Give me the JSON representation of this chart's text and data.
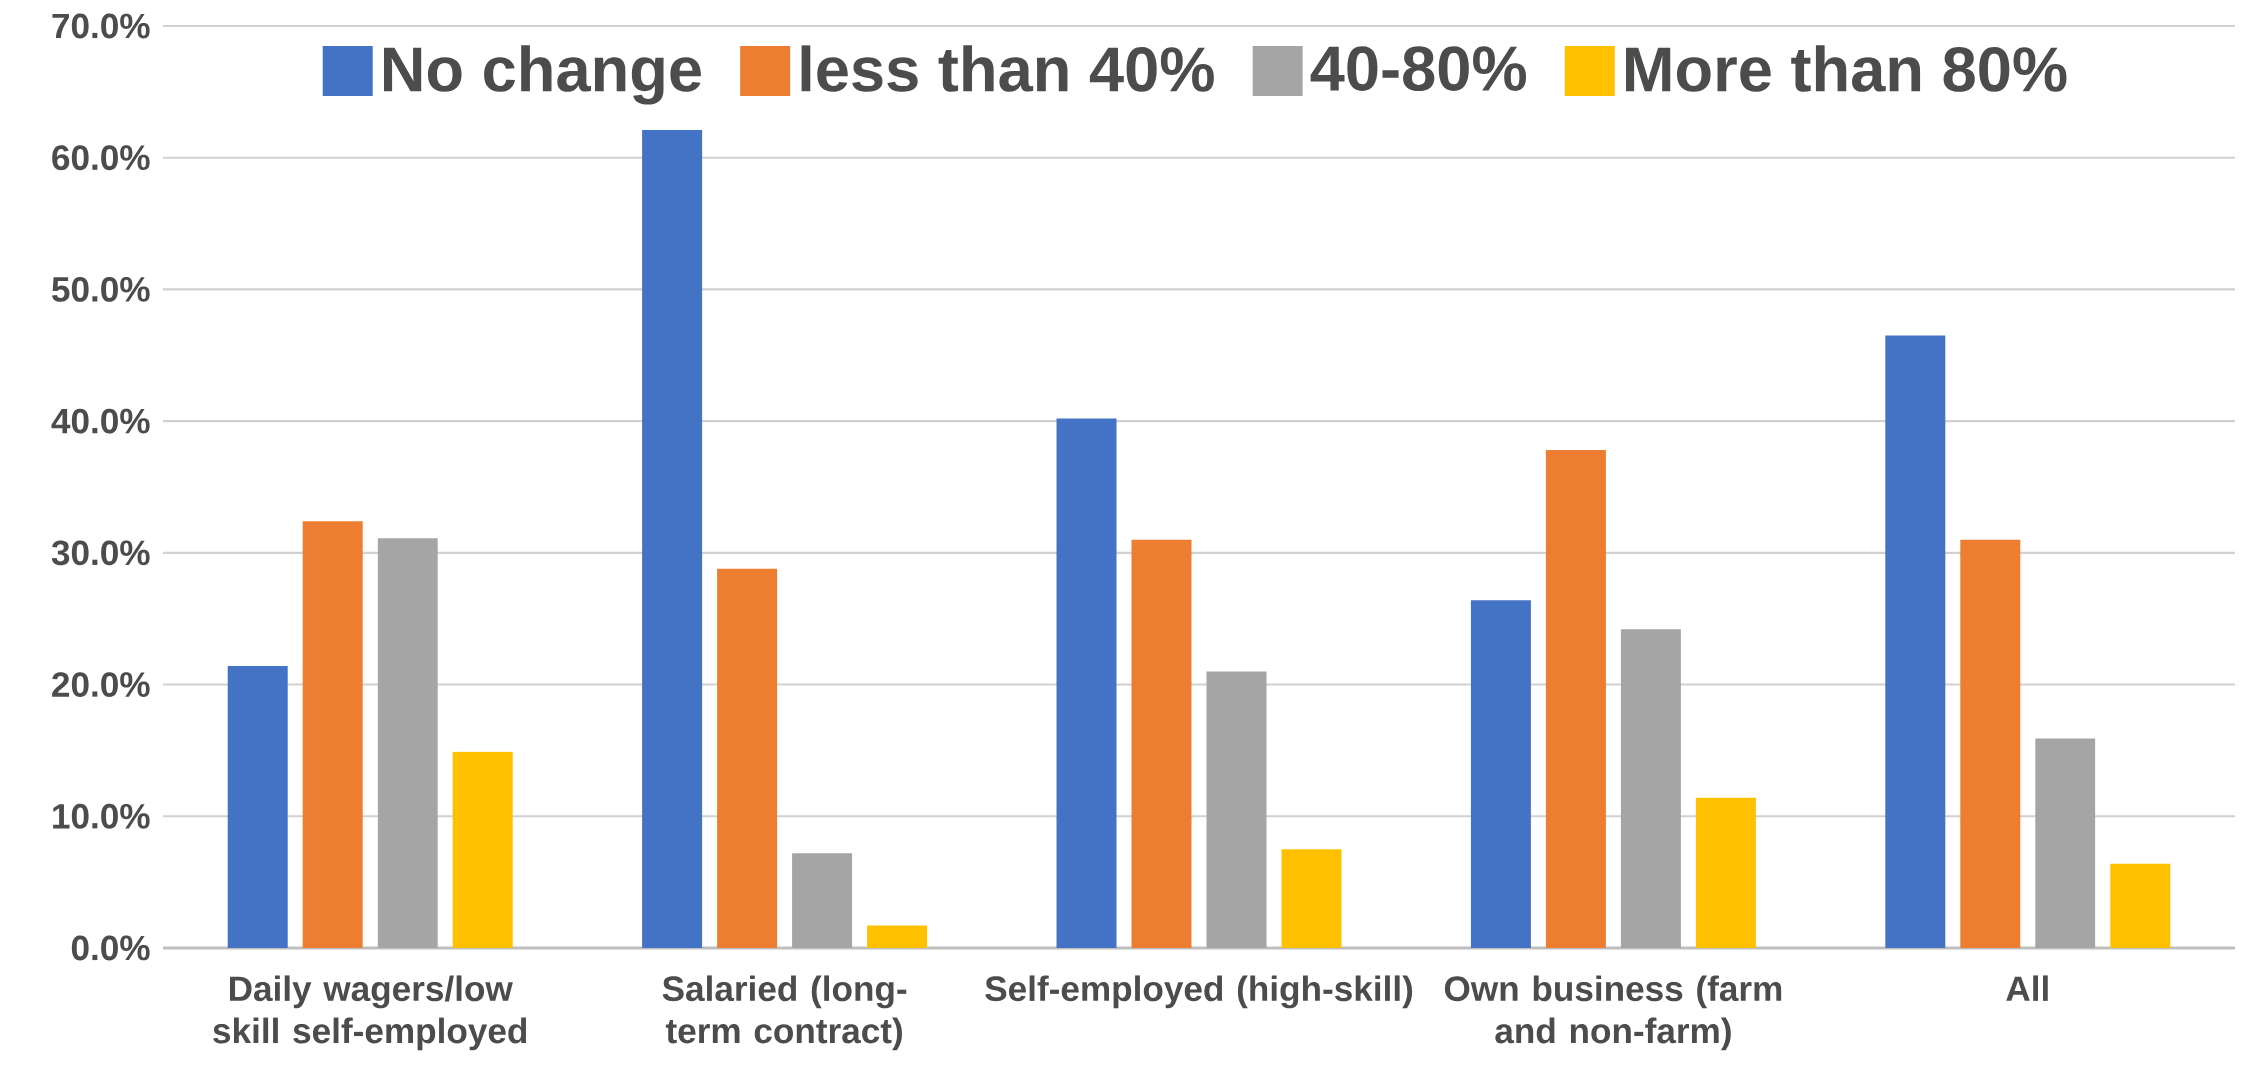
{
  "chart_data": {
    "type": "bar",
    "categories": [
      "Daily wagers/low skill self-employed",
      "Salaried (long-term contract)",
      "Self-employed (high-skill)",
      "Own business (farm and non-farm)",
      "All"
    ],
    "series": [
      {
        "name": "No change",
        "color": "#4472c4",
        "values": [
          21.4,
          62.1,
          40.2,
          26.4,
          46.5
        ]
      },
      {
        "name": "less than 40%",
        "color": "#ed7d31",
        "values": [
          32.4,
          28.8,
          31.0,
          37.8,
          31.0
        ]
      },
      {
        "name": "40-80%",
        "color": "#a5a5a5",
        "values": [
          31.1,
          7.2,
          21.0,
          24.2,
          15.9
        ]
      },
      {
        "name": "More than 80%",
        "color": "#ffc000",
        "values": [
          14.9,
          1.7,
          7.5,
          11.4,
          6.4
        ]
      }
    ],
    "ylim": [
      0,
      70
    ],
    "yticks": [
      {
        "value": 0,
        "label": "0.0%"
      },
      {
        "value": 10,
        "label": "10.0%"
      },
      {
        "value": 20,
        "label": "20.0%"
      },
      {
        "value": 30,
        "label": "30.0%"
      },
      {
        "value": 40,
        "label": "40.0%"
      },
      {
        "value": 50,
        "label": "50.0%"
      },
      {
        "value": 60,
        "label": "60.0%"
      },
      {
        "value": 70,
        "label": "70.0%"
      }
    ],
    "grid": "y",
    "legend": "top"
  }
}
